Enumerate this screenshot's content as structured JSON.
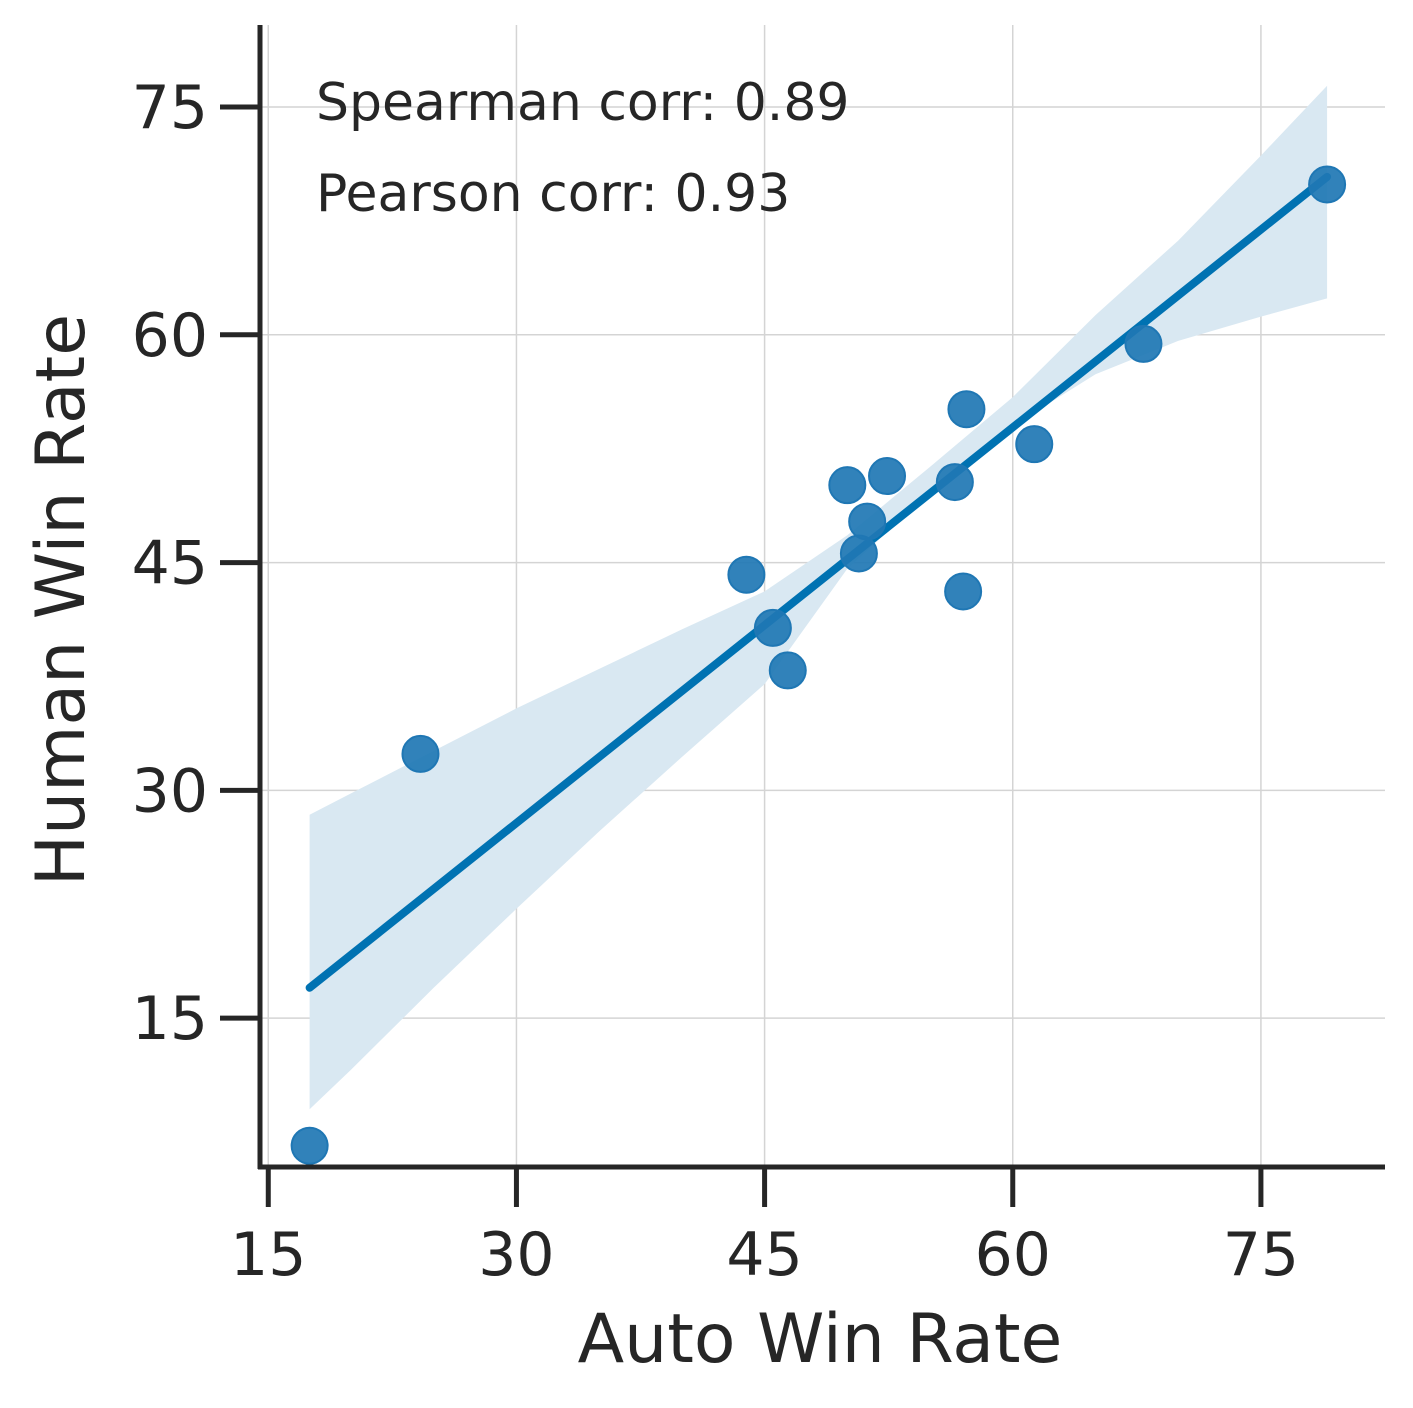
{
  "chart_data": {
    "type": "scatter",
    "xlabel": "Auto Win Rate",
    "ylabel": "Human Win Rate",
    "xlim": [
      14.5,
      82.5
    ],
    "ylim": [
      5.2,
      80.4
    ],
    "xticks": [
      15,
      30,
      45,
      60,
      75
    ],
    "yticks": [
      15,
      30,
      45,
      60,
      75
    ],
    "grid": true,
    "annotations": [
      "Spearman corr: 0.89",
      "Pearson corr: 0.93"
    ],
    "points": [
      {
        "x": 17.5,
        "y": 6.6
      },
      {
        "x": 24.2,
        "y": 32.4
      },
      {
        "x": 43.9,
        "y": 44.2
      },
      {
        "x": 45.5,
        "y": 40.7
      },
      {
        "x": 46.4,
        "y": 37.9
      },
      {
        "x": 50.0,
        "y": 50.1
      },
      {
        "x": 50.7,
        "y": 45.6
      },
      {
        "x": 51.2,
        "y": 47.7
      },
      {
        "x": 52.4,
        "y": 50.7
      },
      {
        "x": 56.5,
        "y": 50.3
      },
      {
        "x": 57.0,
        "y": 43.1
      },
      {
        "x": 57.2,
        "y": 55.1
      },
      {
        "x": 61.3,
        "y": 52.8
      },
      {
        "x": 67.9,
        "y": 59.4
      },
      {
        "x": 79.0,
        "y": 69.9
      }
    ],
    "regression": {
      "x": [
        17.5,
        79.0
      ],
      "y": [
        17.0,
        70.4
      ]
    },
    "confidence_band": {
      "x": [
        17.5,
        20,
        25,
        30,
        35,
        40,
        45,
        50,
        55,
        60,
        65,
        70,
        75,
        79.0
      ],
      "upper": [
        28.4,
        29.8,
        32.6,
        35.4,
        38.0,
        40.6,
        43.1,
        46.8,
        51.3,
        55.9,
        61.3,
        66.2,
        71.8,
        76.4
      ],
      "lower": [
        9.0,
        11.6,
        17.0,
        22.2,
        27.3,
        32.2,
        37.0,
        44.6,
        49.6,
        54.0,
        57.4,
        59.6,
        61.2,
        62.4
      ]
    },
    "colors": {
      "points": "#1f77b4",
      "line": "#0072b2",
      "band": "#d9e8f2",
      "grid": "#d4d4d4",
      "axis": "#262626"
    }
  }
}
